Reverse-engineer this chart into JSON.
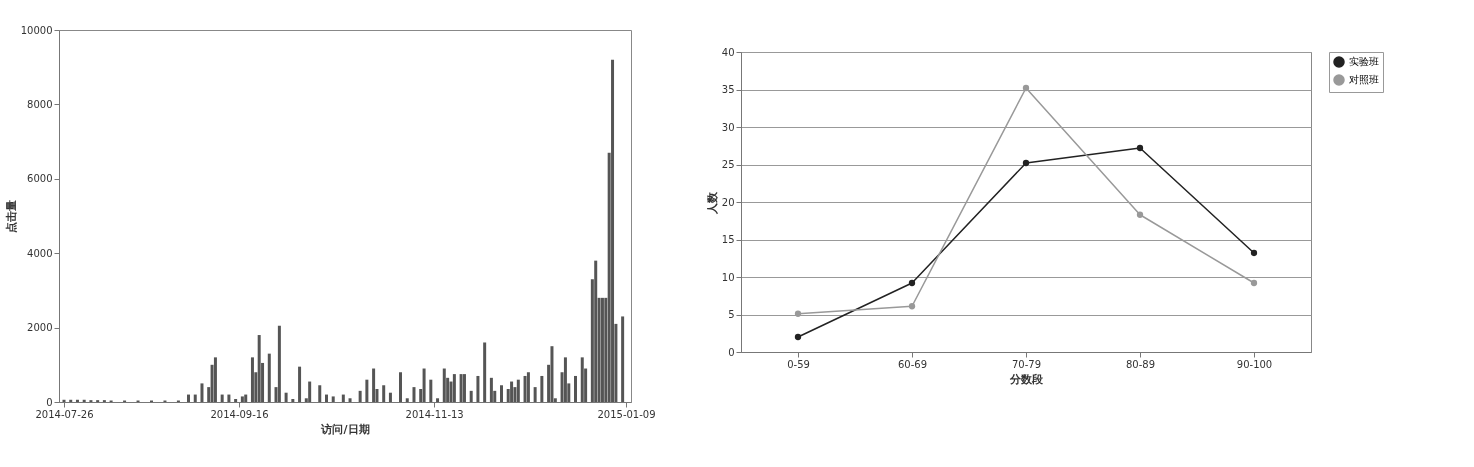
{
  "chart_data": [
    {
      "type": "bar",
      "xlabel": "访问/日期",
      "ylabel": "点击量",
      "color": "#555555",
      "grid": false,
      "x": [
        "2014-07-26",
        "2014-07-28",
        "2014-07-30",
        "2014-08-01",
        "2014-08-03",
        "2014-08-05",
        "2014-08-07",
        "2014-08-09",
        "2014-08-13",
        "2014-08-17",
        "2014-08-21",
        "2014-08-25",
        "2014-08-29",
        "2014-09-01",
        "2014-09-03",
        "2014-09-05",
        "2014-09-07",
        "2014-09-08",
        "2014-09-09",
        "2014-09-11",
        "2014-09-13",
        "2014-09-15",
        "2014-09-17",
        "2014-09-18",
        "2014-09-20",
        "2014-09-21",
        "2014-09-22",
        "2014-09-23",
        "2014-09-25",
        "2014-09-27",
        "2014-09-28",
        "2014-09-30",
        "2014-10-02",
        "2014-10-04",
        "2014-10-06",
        "2014-10-07",
        "2014-10-10",
        "2014-10-12",
        "2014-10-14",
        "2014-10-17",
        "2014-10-19",
        "2014-10-22",
        "2014-10-24",
        "2014-10-26",
        "2014-10-27",
        "2014-10-29",
        "2014-10-31",
        "2014-11-03",
        "2014-11-05",
        "2014-11-07",
        "2014-11-09",
        "2014-11-10",
        "2014-11-12",
        "2014-11-14",
        "2014-11-16",
        "2014-11-17",
        "2014-11-18",
        "2014-11-19",
        "2014-11-21",
        "2014-11-22",
        "2014-11-24",
        "2014-11-26",
        "2014-11-28",
        "2014-11-30",
        "2014-12-01",
        "2014-12-03",
        "2014-12-05",
        "2014-12-06",
        "2014-12-07",
        "2014-12-08",
        "2014-12-10",
        "2014-12-11",
        "2014-12-13",
        "2014-12-15",
        "2014-12-17",
        "2014-12-18",
        "2014-12-19",
        "2014-12-21",
        "2014-12-22",
        "2014-12-23",
        "2014-12-25",
        "2014-12-27",
        "2014-12-28",
        "2014-12-30",
        "2014-12-31",
        "2015-01-01",
        "2015-01-02",
        "2015-01-03",
        "2015-01-04",
        "2015-01-05",
        "2015-01-06",
        "2015-01-08"
      ],
      "values": [
        60,
        60,
        60,
        60,
        50,
        50,
        50,
        40,
        40,
        40,
        40,
        40,
        40,
        200,
        200,
        500,
        400,
        1000,
        1200,
        200,
        200,
        80,
        150,
        200,
        1200,
        800,
        1800,
        1050,
        1300,
        400,
        2050,
        250,
        80,
        950,
        100,
        550,
        450,
        200,
        150,
        200,
        100,
        300,
        600,
        900,
        350,
        450,
        250,
        800,
        100,
        400,
        350,
        900,
        600,
        100,
        900,
        650,
        550,
        750,
        750,
        750,
        300,
        700,
        1600,
        650,
        300,
        450,
        350,
        550,
        400,
        600,
        700,
        800,
        400,
        700,
        1000,
        1500,
        100,
        800,
        1200,
        500,
        700,
        1200,
        900,
        3300,
        3800,
        2800,
        2800,
        2800,
        6700,
        9200,
        2100,
        2300
      ],
      "xlim": [
        "2014-07-26",
        "2015-01-09"
      ],
      "xticks": [
        "2014-07-26",
        "2014-09-16",
        "2014-11-13",
        "2015-01-09"
      ],
      "ylim": [
        0,
        10000
      ],
      "yticks": [
        0,
        2000,
        4000,
        6000,
        8000,
        10000
      ]
    },
    {
      "type": "line",
      "xlabel": "分数段",
      "ylabel": "人数",
      "categories": [
        "0-59",
        "60-69",
        "70-79",
        "80-89",
        "90-100"
      ],
      "series": [
        {
          "name": "实验班",
          "color": "#222222",
          "values": [
            2,
            9.2,
            25.2,
            27.2,
            13.2
          ]
        },
        {
          "name": "对照班",
          "color": "#999999",
          "values": [
            5.1,
            6.1,
            35.2,
            18.3,
            9.2
          ]
        }
      ],
      "ylim": [
        0,
        40
      ],
      "yticks": [
        0,
        5,
        10,
        15,
        20,
        25,
        30,
        35,
        40
      ],
      "grid": "y",
      "legend": "right",
      "marker": "circle"
    }
  ]
}
